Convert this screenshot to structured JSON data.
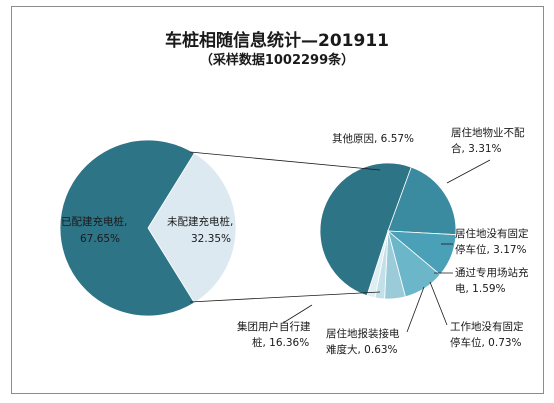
{
  "chart_data": [
    {
      "type": "pie",
      "title": "车桩相随信息统计—201911",
      "subtitle": "（采样数据1002299条）",
      "slices": [
        {
          "name": "已配建充电桩",
          "value": 67.65,
          "value_label": "67.65%",
          "color": "#2e7487"
        },
        {
          "name": "未配建充电桩",
          "value": 32.35,
          "value_label": "32.35%",
          "color": "#dce9f0"
        }
      ]
    },
    {
      "type": "pie",
      "description_of": "未配建充电桩",
      "slices": [
        {
          "name": "集团用户自行建桩",
          "value": 16.36,
          "value_label": "16.36%",
          "color": "#2e7487"
        },
        {
          "name": "其他原因",
          "value": 6.57,
          "value_label": "6.57%",
          "color": "#3a8aa0"
        },
        {
          "name": "居住地物业不配合",
          "value": 3.31,
          "value_label": "3.31%",
          "color": "#4aa0b6"
        },
        {
          "name": "居住地没有固定停车位",
          "value": 3.17,
          "value_label": "3.17%",
          "color": "#6cb6c9"
        },
        {
          "name": "通过专用场站充电",
          "value": 1.59,
          "value_label": "1.59%",
          "color": "#9bcbd9"
        },
        {
          "name": "工作地没有固定停车位",
          "value": 0.73,
          "value_label": "0.73%",
          "color": "#c3dfe8"
        },
        {
          "name": "居住地报装接电难度大",
          "value": 0.63,
          "value_label": "0.63%",
          "color": "#deeef3"
        }
      ]
    }
  ],
  "labels": {
    "main": [
      {
        "line1": "已配建充电桩,",
        "line2": "67.65%"
      },
      {
        "line1": "未配建充电桩,",
        "line2": "32.35%"
      }
    ],
    "detail": [
      {
        "line1": "其他原因, 6.57%"
      },
      {
        "line1": "居住地物业不配",
        "line2": "合, 3.31%"
      },
      {
        "line1": "居住地没有固定",
        "line2": "停车位, 3.17%"
      },
      {
        "line1": "通过专用场站充",
        "line2": "电, 1.59%"
      },
      {
        "line1": "工作地没有固定",
        "line2": "停车位, 0.73%"
      },
      {
        "line1": "居住地报装接电",
        "line2": "难度大, 0.63%"
      },
      {
        "line1": "集团用户自行建",
        "line2": "桩, 16.36%"
      }
    ]
  }
}
